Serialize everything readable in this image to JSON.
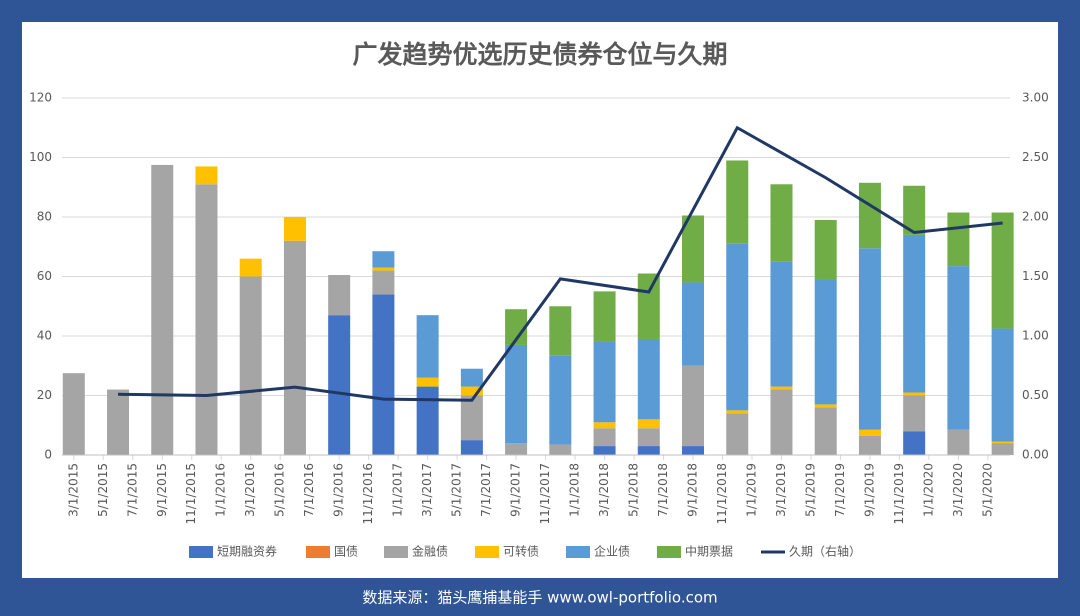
{
  "chart_data": {
    "type": "bar",
    "title": "广发趋势优选历史债券仓位与久期",
    "source": "数据来源：猫头鹰捕基能手   www.owl-portfolio.com",
    "x": [
      0,
      3,
      6,
      9,
      12,
      15,
      18,
      21,
      24,
      27,
      30,
      33,
      36,
      39,
      42,
      45,
      48,
      51,
      54,
      57,
      60,
      63
    ],
    "xlim": [
      -0.8,
      63.5
    ],
    "xticks": [
      {
        "value": 0,
        "label": "3/1/2015"
      },
      {
        "value": 2,
        "label": "5/1/2015"
      },
      {
        "value": 4,
        "label": "7/1/2015"
      },
      {
        "value": 6,
        "label": "9/1/2015"
      },
      {
        "value": 8,
        "label": "11/1/2015"
      },
      {
        "value": 10,
        "label": "1/1/2016"
      },
      {
        "value": 12,
        "label": "3/1/2016"
      },
      {
        "value": 14,
        "label": "5/1/2016"
      },
      {
        "value": 16,
        "label": "7/1/2016"
      },
      {
        "value": 18,
        "label": "9/1/2016"
      },
      {
        "value": 20,
        "label": "11/1/2016"
      },
      {
        "value": 22,
        "label": "1/1/2017"
      },
      {
        "value": 24,
        "label": "3/1/2017"
      },
      {
        "value": 26,
        "label": "5/1/2017"
      },
      {
        "value": 28,
        "label": "7/1/2017"
      },
      {
        "value": 30,
        "label": "9/1/2017"
      },
      {
        "value": 32,
        "label": "11/1/2017"
      },
      {
        "value": 34,
        "label": "1/1/2018"
      },
      {
        "value": 36,
        "label": "3/1/2018"
      },
      {
        "value": 38,
        "label": "5/1/2018"
      },
      {
        "value": 40,
        "label": "7/1/2018"
      },
      {
        "value": 42,
        "label": "9/1/2018"
      },
      {
        "value": 44,
        "label": "11/1/2018"
      },
      {
        "value": 46,
        "label": "1/1/2019"
      },
      {
        "value": 48,
        "label": "3/1/2019"
      },
      {
        "value": 50,
        "label": "5/1/2019"
      },
      {
        "value": 52,
        "label": "7/1/2019"
      },
      {
        "value": 54,
        "label": "9/1/2019"
      },
      {
        "value": 56,
        "label": "11/1/2019"
      },
      {
        "value": 58,
        "label": "1/1/2020"
      },
      {
        "value": 60,
        "label": "3/1/2020"
      },
      {
        "value": 62,
        "label": "5/1/2020"
      }
    ],
    "ylim": [
      0,
      120
    ],
    "yticks": [
      0,
      20,
      40,
      60,
      80,
      100,
      120
    ],
    "y2lim": [
      0,
      3
    ],
    "y2ticks": [
      {
        "value": 0,
        "label": "0.00"
      },
      {
        "value": 0.5,
        "label": "0.50"
      },
      {
        "value": 1,
        "label": "1.00"
      },
      {
        "value": 1.5,
        "label": "1.50"
      },
      {
        "value": 2,
        "label": "2.00"
      },
      {
        "value": 2.5,
        "label": "2.50"
      },
      {
        "value": 3,
        "label": "3.00"
      }
    ],
    "grid": true,
    "legend": "bottom",
    "series": [
      {
        "name": "短期融资券",
        "color": "#4472c4",
        "values": [
          0,
          0,
          0,
          0,
          0,
          0,
          47,
          54,
          23,
          5,
          0,
          0,
          3,
          3,
          3,
          0,
          0,
          0,
          0,
          8,
          0,
          0
        ]
      },
      {
        "name": "国债",
        "color": "#ed7d31",
        "values": [
          0,
          0,
          0,
          0,
          0,
          0,
          0,
          0,
          0,
          0,
          0,
          0,
          0,
          0,
          0,
          0,
          0,
          0,
          0,
          0,
          0,
          0
        ]
      },
      {
        "name": "金融债",
        "color": "#a5a5a5",
        "values": [
          27.5,
          22,
          97.5,
          91,
          60,
          72,
          13.5,
          8,
          0,
          15,
          4,
          3.5,
          6,
          6,
          27,
          14,
          22,
          16,
          6.5,
          12,
          8.5,
          4
        ]
      },
      {
        "name": "可转债",
        "color": "#ffc000",
        "values": [
          0,
          0,
          0,
          6,
          6,
          8,
          0,
          1,
          3,
          3,
          0,
          0,
          2,
          3,
          0,
          1,
          1,
          1,
          2,
          1,
          0,
          0.5
        ]
      },
      {
        "name": "企业债",
        "color": "#5b9bd5",
        "values": [
          0,
          0,
          0,
          0,
          0,
          0,
          0,
          5.5,
          21,
          6,
          33,
          30,
          27,
          27,
          28,
          56,
          42,
          42,
          61,
          53,
          55,
          38
        ]
      },
      {
        "name": "中期票据",
        "color": "#70ad47",
        "values": [
          0,
          0,
          0,
          0,
          0,
          0,
          0,
          0,
          0,
          0,
          12,
          16.5,
          17,
          22,
          22.5,
          28,
          26,
          20,
          22,
          16.5,
          18,
          39
        ]
      },
      {
        "name": "久期（右轴）",
        "color": "#203864",
        "type": "line",
        "axis": "y2",
        "x": [
          3,
          9,
          15,
          21,
          27,
          33,
          39,
          45,
          51,
          57,
          63
        ],
        "values": [
          0.51,
          0.5,
          0.57,
          0.47,
          0.46,
          1.48,
          1.37,
          2.75,
          2.33,
          1.87,
          1.95
        ]
      }
    ]
  }
}
